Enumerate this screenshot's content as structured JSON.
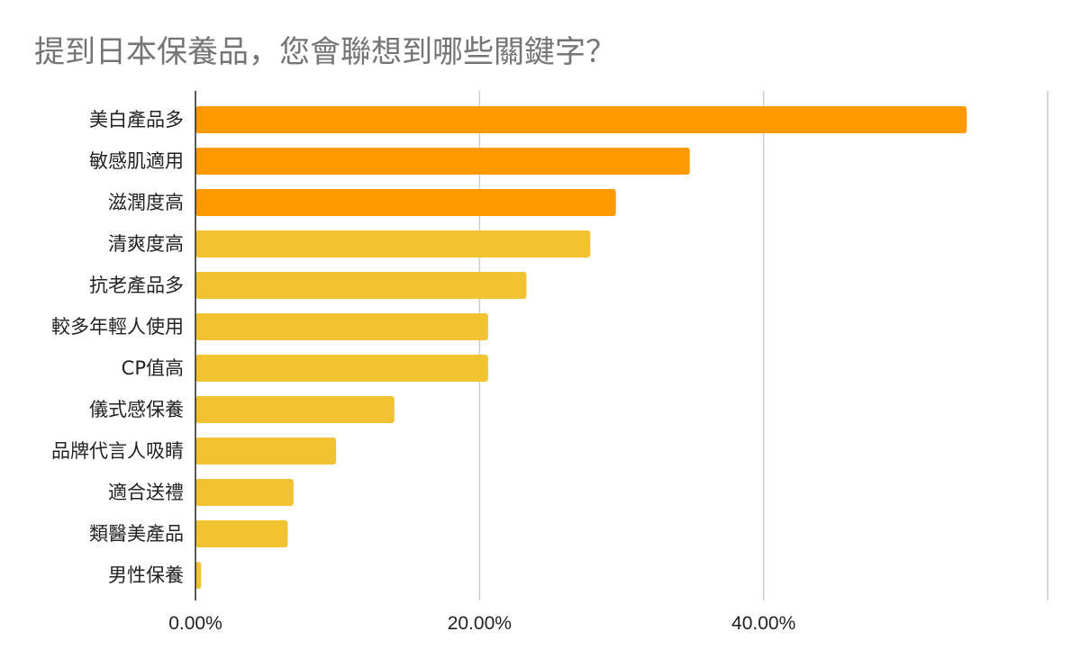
{
  "title": "提到日本保養品，您會聯想到哪些關鍵字？",
  "colors": {
    "highlight": "#FF9900",
    "normal": "#F1C232",
    "grid": "#cccccc",
    "axis": "#222222"
  },
  "chart_data": {
    "type": "bar",
    "orientation": "horizontal",
    "title": "提到日本保養品，您會聯想到哪些關鍵字？",
    "xlabel": "",
    "ylabel": "",
    "categories": [
      "美白產品多",
      "敏感肌適用",
      "滋潤度高",
      "清爽度高",
      "抗老產品多",
      "較多年輕人使用",
      "CP值高",
      "儀式感保養",
      "品牌代言人吸睛",
      "適合送禮",
      "類醫美產品",
      "男性保養"
    ],
    "values": [
      54.3,
      34.8,
      29.6,
      27.8,
      23.3,
      20.6,
      20.6,
      14.0,
      9.9,
      6.9,
      6.5,
      0.4
    ],
    "highlighted": [
      true,
      true,
      true,
      false,
      false,
      false,
      false,
      false,
      false,
      false,
      false,
      false
    ],
    "xlim": [
      0,
      60
    ],
    "ticks": [
      0,
      20,
      40
    ],
    "tick_labels": [
      "0.00%",
      "20.00%",
      "40.00%"
    ],
    "grid": true,
    "legend": "none"
  }
}
